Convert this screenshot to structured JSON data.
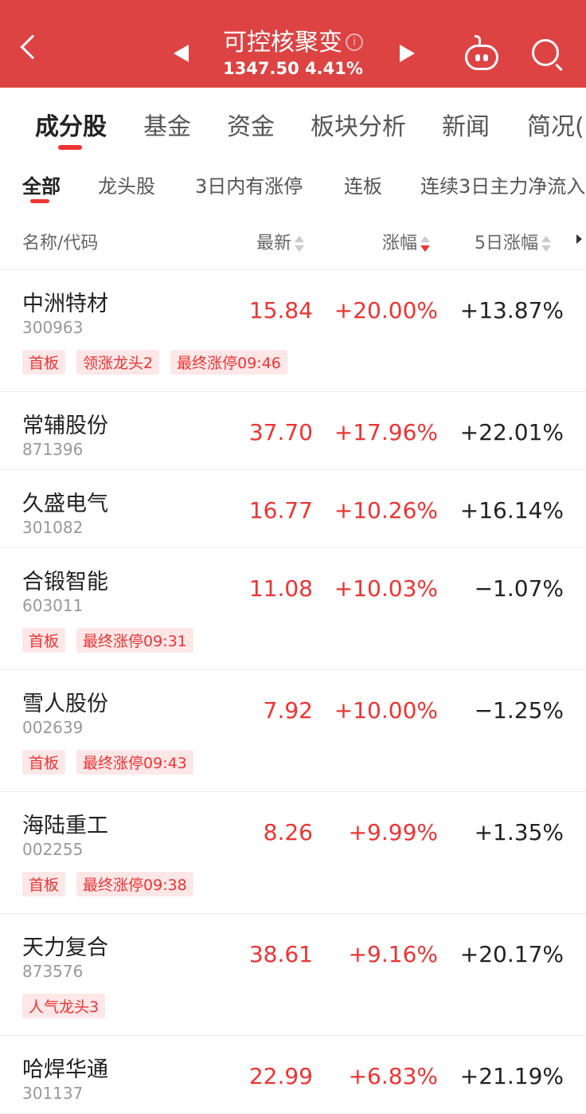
{
  "header": {
    "title": "可控核聚变",
    "price": "1347.50",
    "change": "4.41%",
    "info_icon": "i"
  },
  "tabs": [
    "成分股",
    "基金",
    "资金",
    "板块分析",
    "新闻",
    "简况("
  ],
  "subtabs": [
    "全部",
    "龙头股",
    "3日内有涨停",
    "连板",
    "连续3日主力净流入"
  ],
  "columns": {
    "name": "名称/代码",
    "latest": "最新",
    "change": "涨幅",
    "change5": "5日涨幅"
  },
  "colors": {
    "brand": "#dd4343",
    "up": "#e33333"
  },
  "rows": [
    {
      "name": "中洲特材",
      "code": "300963",
      "price": "15.84",
      "change": "+20.00%",
      "change5": "+13.87%",
      "tags": [
        "首板",
        "领涨龙头2",
        "最终涨停09:46"
      ]
    },
    {
      "name": "常辅股份",
      "code": "871396",
      "price": "37.70",
      "change": "+17.96%",
      "change5": "+22.01%",
      "tags": []
    },
    {
      "name": "久盛电气",
      "code": "301082",
      "price": "16.77",
      "change": "+10.26%",
      "change5": "+16.14%",
      "tags": []
    },
    {
      "name": "合锻智能",
      "code": "603011",
      "price": "11.08",
      "change": "+10.03%",
      "change5": "−1.07%",
      "tags": [
        "首板",
        "最终涨停09:31"
      ]
    },
    {
      "name": "雪人股份",
      "code": "002639",
      "price": "7.92",
      "change": "+10.00%",
      "change5": "−1.25%",
      "tags": [
        "首板",
        "最终涨停09:43"
      ]
    },
    {
      "name": "海陆重工",
      "code": "002255",
      "price": "8.26",
      "change": "+9.99%",
      "change5": "+1.35%",
      "tags": [
        "首板",
        "最终涨停09:38"
      ]
    },
    {
      "name": "天力复合",
      "code": "873576",
      "price": "38.61",
      "change": "+9.16%",
      "change5": "+20.17%",
      "tags": [
        "人气龙头3"
      ]
    },
    {
      "name": "哈焊华通",
      "code": "301137",
      "price": "22.99",
      "change": "+6.83%",
      "change5": "+21.19%",
      "tags": []
    }
  ]
}
